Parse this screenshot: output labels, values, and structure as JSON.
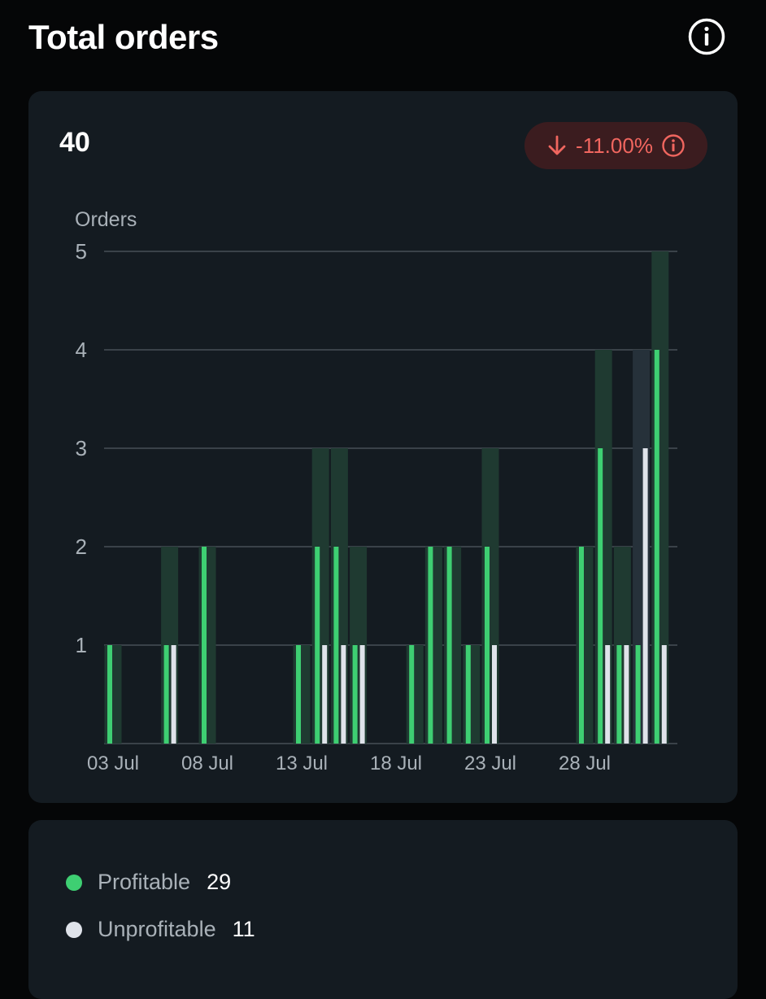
{
  "header": {
    "title": "Total orders",
    "info_icon": "info-circle-icon"
  },
  "summary": {
    "total": "40",
    "change_label": "-11.00%",
    "change_icon": "arrow-down-icon",
    "change_info_icon": "info-circle-icon"
  },
  "colors": {
    "profitable": "#3ecf72",
    "unprofitable": "#dfe3ea",
    "negative": "#f0665f",
    "gridline": "#3a4249"
  },
  "chart_data": {
    "type": "bar",
    "ylabel": "Orders",
    "ylim": [
      0,
      5
    ],
    "yticks": [
      1,
      2,
      3,
      4,
      5
    ],
    "x_start": "2024-07-03",
    "x_end": "2024-08-02",
    "xtick_labels": [
      "03 Jul",
      "08 Jul",
      "13 Jul",
      "18 Jul",
      "23 Jul",
      "28 Jul"
    ],
    "xtick_dates": [
      "2024-07-03",
      "2024-07-08",
      "2024-07-13",
      "2024-07-18",
      "2024-07-23",
      "2024-07-28"
    ],
    "series": [
      {
        "name": "Profitable",
        "color": "#3ecf72"
      },
      {
        "name": "Unprofitable",
        "color": "#dfe3ea"
      }
    ],
    "bars": [
      {
        "date": "2024-07-03",
        "profitable": 1,
        "unprofitable": 0
      },
      {
        "date": "2024-07-06",
        "profitable": 1,
        "unprofitable": 1
      },
      {
        "date": "2024-07-08",
        "profitable": 2,
        "unprofitable": 0
      },
      {
        "date": "2024-07-13",
        "profitable": 1,
        "unprofitable": 0
      },
      {
        "date": "2024-07-14",
        "profitable": 2,
        "unprofitable": 1
      },
      {
        "date": "2024-07-15",
        "profitable": 2,
        "unprofitable": 1
      },
      {
        "date": "2024-07-16",
        "profitable": 1,
        "unprofitable": 1
      },
      {
        "date": "2024-07-19",
        "profitable": 1,
        "unprofitable": 0
      },
      {
        "date": "2024-07-20",
        "profitable": 2,
        "unprofitable": 0
      },
      {
        "date": "2024-07-21",
        "profitable": 2,
        "unprofitable": 0
      },
      {
        "date": "2024-07-22",
        "profitable": 1,
        "unprofitable": 0
      },
      {
        "date": "2024-07-23",
        "profitable": 2,
        "unprofitable": 1
      },
      {
        "date": "2024-07-28",
        "profitable": 2,
        "unprofitable": 0
      },
      {
        "date": "2024-07-29",
        "profitable": 3,
        "unprofitable": 1
      },
      {
        "date": "2024-07-30",
        "profitable": 1,
        "unprofitable": 1
      },
      {
        "date": "2024-07-31",
        "profitable": 1,
        "unprofitable": 3
      },
      {
        "date": "2024-08-01",
        "profitable": 4,
        "unprofitable": 1
      }
    ]
  },
  "legend": {
    "items": [
      {
        "label": "Profitable",
        "count": "29",
        "color": "#3ecf72"
      },
      {
        "label": "Unprofitable",
        "count": "11",
        "color": "#dfe3ea"
      }
    ]
  }
}
